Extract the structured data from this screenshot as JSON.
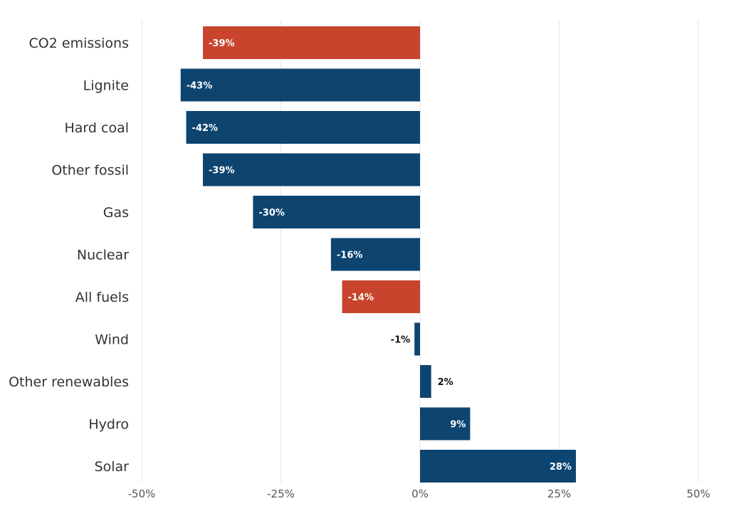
{
  "chart_data": {
    "type": "bar",
    "orientation": "horizontal",
    "categories": [
      "CO2 emissions",
      "Lignite",
      "Hard coal",
      "Other fossil",
      "Gas",
      "Nuclear",
      "All fuels",
      "Wind",
      "Other renewables",
      "Hydro",
      "Solar"
    ],
    "values": [
      -39,
      -43,
      -42,
      -39,
      -30,
      -16,
      -14,
      -1,
      2,
      9,
      28
    ],
    "data_labels": [
      "-39%",
      "-43%",
      "-42%",
      "-39%",
      "-30%",
      "-16%",
      "-14%",
      "-1%",
      "2%",
      "9%",
      "28%"
    ],
    "highlighted": [
      "CO2 emissions",
      "All fuels"
    ],
    "colors": {
      "default": "#0d4470",
      "highlight": "#c8442c",
      "grid": "#e6e6e6"
    },
    "x_ticks": [
      -50,
      -25,
      0,
      25,
      50
    ],
    "x_tick_labels": [
      "-50%",
      "-25%",
      "0%",
      "25%",
      "50%"
    ],
    "xlim": [
      -50,
      50
    ],
    "grid": true,
    "title": "",
    "xlabel": "",
    "ylabel": ""
  }
}
